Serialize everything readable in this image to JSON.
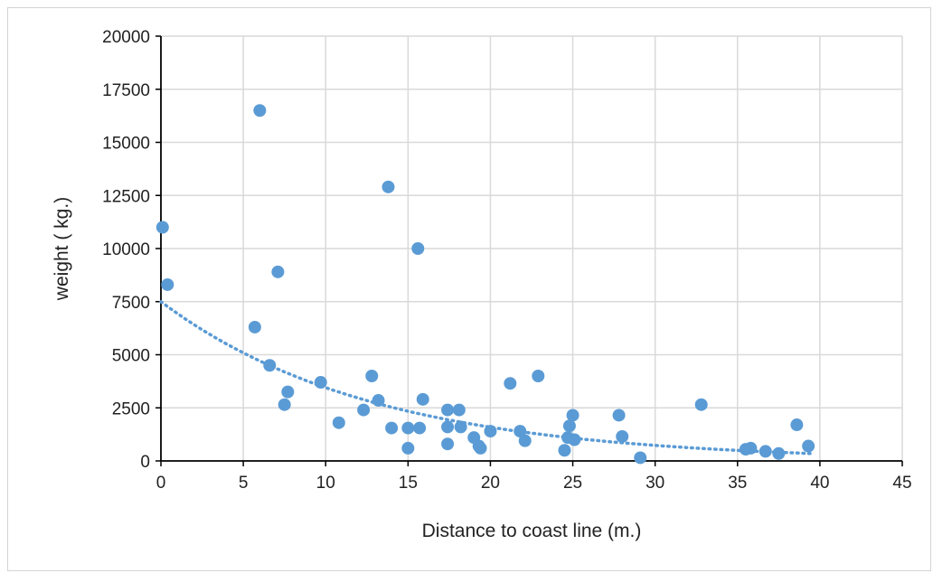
{
  "chart_data": {
    "type": "scatter",
    "title": "",
    "xlabel": "Distance to coast line (m.)",
    "ylabel": "weight ( kg.)",
    "xlim": [
      0,
      45
    ],
    "ylim": [
      0,
      20000
    ],
    "xticks": [
      0,
      5,
      10,
      15,
      20,
      25,
      30,
      35,
      40,
      45
    ],
    "yticks": [
      0,
      2500,
      5000,
      7500,
      10000,
      12500,
      15000,
      17500,
      20000
    ],
    "xtick_labels": [
      "0",
      "5",
      "10",
      "15",
      "20",
      "25",
      "30",
      "35",
      "40",
      "45"
    ],
    "ytick_labels": [
      "0",
      "2500",
      "5000",
      "7500",
      "10000",
      "12500",
      "15000",
      "17500",
      "20000"
    ],
    "grid": true,
    "legend": "none",
    "series": [
      {
        "color": "#5b9bd5",
        "points": [
          [
            0.1,
            11000
          ],
          [
            0.4,
            8300
          ],
          [
            5.7,
            6300
          ],
          [
            6.0,
            16500
          ],
          [
            6.6,
            4500
          ],
          [
            7.1,
            8900
          ],
          [
            7.5,
            2650
          ],
          [
            7.7,
            3250
          ],
          [
            9.7,
            3700
          ],
          [
            10.8,
            1800
          ],
          [
            12.3,
            2400
          ],
          [
            12.8,
            4000
          ],
          [
            13.2,
            2850
          ],
          [
            13.8,
            12900
          ],
          [
            14.0,
            1550
          ],
          [
            15.0,
            1550
          ],
          [
            15.0,
            600
          ],
          [
            15.6,
            10000
          ],
          [
            15.7,
            1550
          ],
          [
            15.9,
            2900
          ],
          [
            17.4,
            2400
          ],
          [
            17.4,
            1600
          ],
          [
            17.4,
            800
          ],
          [
            18.1,
            2400
          ],
          [
            18.2,
            1600
          ],
          [
            19.0,
            1100
          ],
          [
            19.3,
            700
          ],
          [
            19.4,
            600
          ],
          [
            20.0,
            1400
          ],
          [
            21.2,
            3650
          ],
          [
            21.8,
            1400
          ],
          [
            22.1,
            950
          ],
          [
            22.9,
            4000
          ],
          [
            24.5,
            500
          ],
          [
            24.7,
            1100
          ],
          [
            24.8,
            1650
          ],
          [
            25.0,
            2150
          ],
          [
            25.1,
            1000
          ],
          [
            27.8,
            2150
          ],
          [
            28.0,
            1150
          ],
          [
            29.1,
            150
          ],
          [
            32.8,
            2650
          ],
          [
            35.5,
            550
          ],
          [
            35.8,
            600
          ],
          [
            36.7,
            450
          ],
          [
            37.5,
            350
          ],
          [
            38.6,
            1700
          ],
          [
            39.3,
            700
          ]
        ]
      }
    ],
    "trendline": {
      "style": "dotted",
      "color": "#5b9bd5",
      "x_range": [
        0,
        39.5
      ],
      "y_at_0": 7500,
      "y_at_end": 350
    }
  }
}
